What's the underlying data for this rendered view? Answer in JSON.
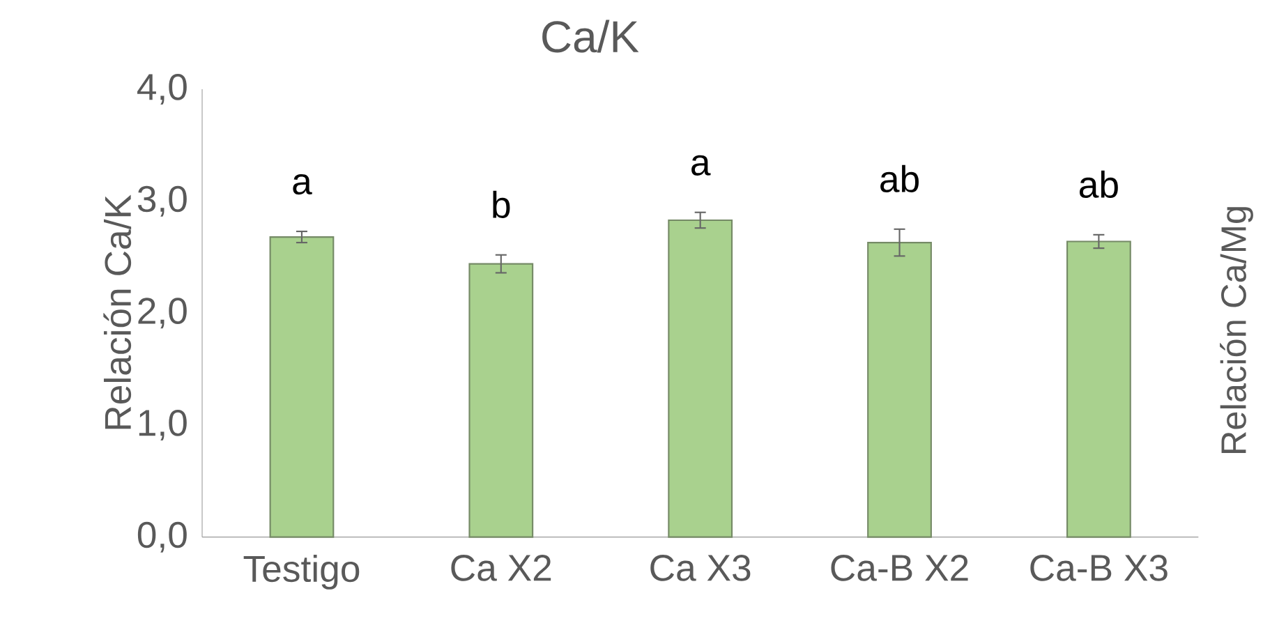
{
  "chart_data": {
    "type": "bar",
    "title": "Ca/K",
    "ylabel": "Relación Ca/K",
    "y2label": "Relación Ca/Mg",
    "categories": [
      "Testigo",
      "Ca X2",
      "Ca X3",
      "Ca-B X2",
      "Ca-B X3"
    ],
    "values": [
      2.68,
      2.44,
      2.83,
      2.63,
      2.64
    ],
    "errors": [
      0.05,
      0.08,
      0.07,
      0.12,
      0.06
    ],
    "color": "#a9d18e",
    "ylim": [
      0,
      4
    ],
    "yticks": [
      {
        "value": 0,
        "label": "0,0"
      },
      {
        "value": 1,
        "label": "1,0"
      },
      {
        "value": 2,
        "label": "2,0"
      },
      {
        "value": 3,
        "label": "3,0"
      },
      {
        "value": 4,
        "label": "4,0"
      }
    ],
    "annotations": [
      "a",
      "b",
      "a",
      "ab",
      "ab"
    ]
  }
}
